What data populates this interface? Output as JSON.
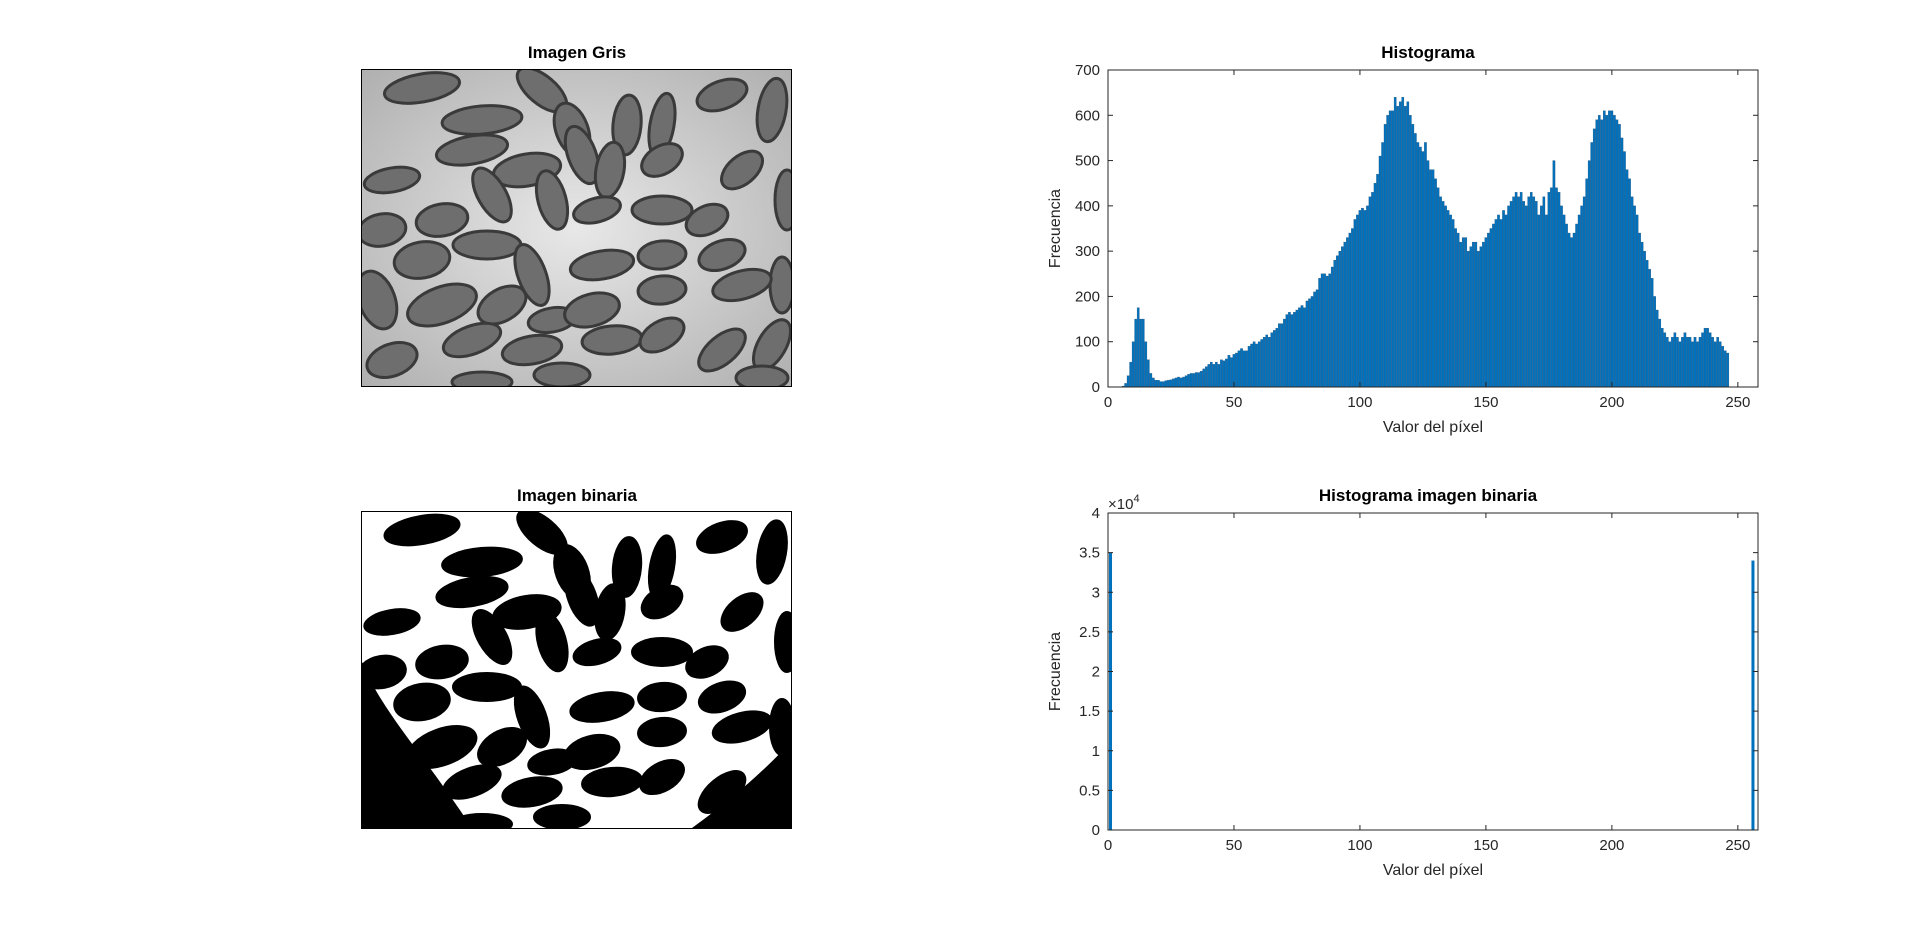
{
  "gray_image": {
    "title": "Imagen Gris"
  },
  "binary_image": {
    "title": "Imagen binaria"
  },
  "colors": {
    "bar": "#0072BD",
    "axis": "#262626"
  },
  "chart_data": [
    {
      "type": "bar",
      "title": "Histograma",
      "xlabel": "Valor del píxel",
      "ylabel": "Frecuencia",
      "xlim": [
        0,
        258
      ],
      "ylim": [
        0,
        700
      ],
      "xticks": [
        0,
        50,
        100,
        150,
        200,
        250
      ],
      "yticks": [
        0,
        100,
        200,
        300,
        400,
        500,
        600,
        700
      ],
      "x_start": 0,
      "values": [
        0,
        0,
        0,
        0,
        0,
        0,
        2,
        8,
        25,
        55,
        100,
        150,
        175,
        150,
        150,
        100,
        60,
        30,
        20,
        15,
        15,
        12,
        12,
        14,
        15,
        16,
        18,
        20,
        22,
        20,
        22,
        25,
        28,
        30,
        30,
        32,
        32,
        35,
        40,
        45,
        50,
        55,
        50,
        55,
        50,
        60,
        58,
        62,
        70,
        65,
        72,
        75,
        80,
        85,
        80,
        80,
        90,
        95,
        100,
        95,
        100,
        105,
        110,
        115,
        110,
        120,
        125,
        130,
        140,
        140,
        150,
        160,
        165,
        160,
        165,
        170,
        175,
        180,
        175,
        190,
        195,
        200,
        210,
        215,
        240,
        250,
        250,
        245,
        250,
        265,
        280,
        290,
        300,
        310,
        320,
        330,
        340,
        350,
        370,
        380,
        390,
        395,
        390,
        400,
        420,
        430,
        450,
        470,
        510,
        540,
        580,
        600,
        610,
        610,
        640,
        620,
        630,
        640,
        620,
        630,
        600,
        580,
        560,
        540,
        530,
        520,
        540,
        500,
        480,
        480,
        460,
        440,
        420,
        410,
        400,
        390,
        380,
        370,
        350,
        340,
        320,
        330,
        330,
        300,
        310,
        320,
        320,
        300,
        310,
        320,
        330,
        340,
        350,
        360,
        370,
        380,
        370,
        390,
        380,
        400,
        410,
        420,
        430,
        420,
        430,
        410,
        400,
        420,
        430,
        420,
        410,
        380,
        400,
        420,
        380,
        430,
        440,
        500,
        440,
        430,
        400,
        380,
        360,
        340,
        330,
        340,
        360,
        380,
        400,
        420,
        460,
        500,
        540,
        570,
        590,
        600,
        590,
        610,
        600,
        610,
        610,
        600,
        590,
        580,
        550,
        520,
        480,
        460,
        420,
        400,
        380,
        340,
        320,
        300,
        280,
        260,
        240,
        200,
        170,
        150,
        130,
        120,
        110,
        100,
        110,
        120,
        110,
        100,
        110,
        120,
        110,
        110,
        100,
        110,
        100,
        110,
        120,
        130,
        130,
        120,
        110,
        100,
        110,
        100,
        90,
        80,
        75,
        0,
        0,
        0
      ],
      "bar_color": "#0072BD"
    },
    {
      "type": "bar",
      "title": "Histograma imagen binaria",
      "xlabel": "Valor del píxel",
      "ylabel": "Frecuencia",
      "xlim": [
        0,
        258
      ],
      "ylim": [
        0,
        4
      ],
      "y_exponent": "×10",
      "y_exponent_power": "4",
      "xticks": [
        0,
        50,
        100,
        150,
        200,
        250
      ],
      "yticks": [
        0,
        0.5,
        1,
        1.5,
        2,
        2.5,
        3,
        3.5,
        4
      ],
      "bars": [
        {
          "x": 1,
          "value": 3.5
        },
        {
          "x": 256,
          "value": 3.4
        }
      ],
      "bar_color": "#0072BD"
    }
  ]
}
